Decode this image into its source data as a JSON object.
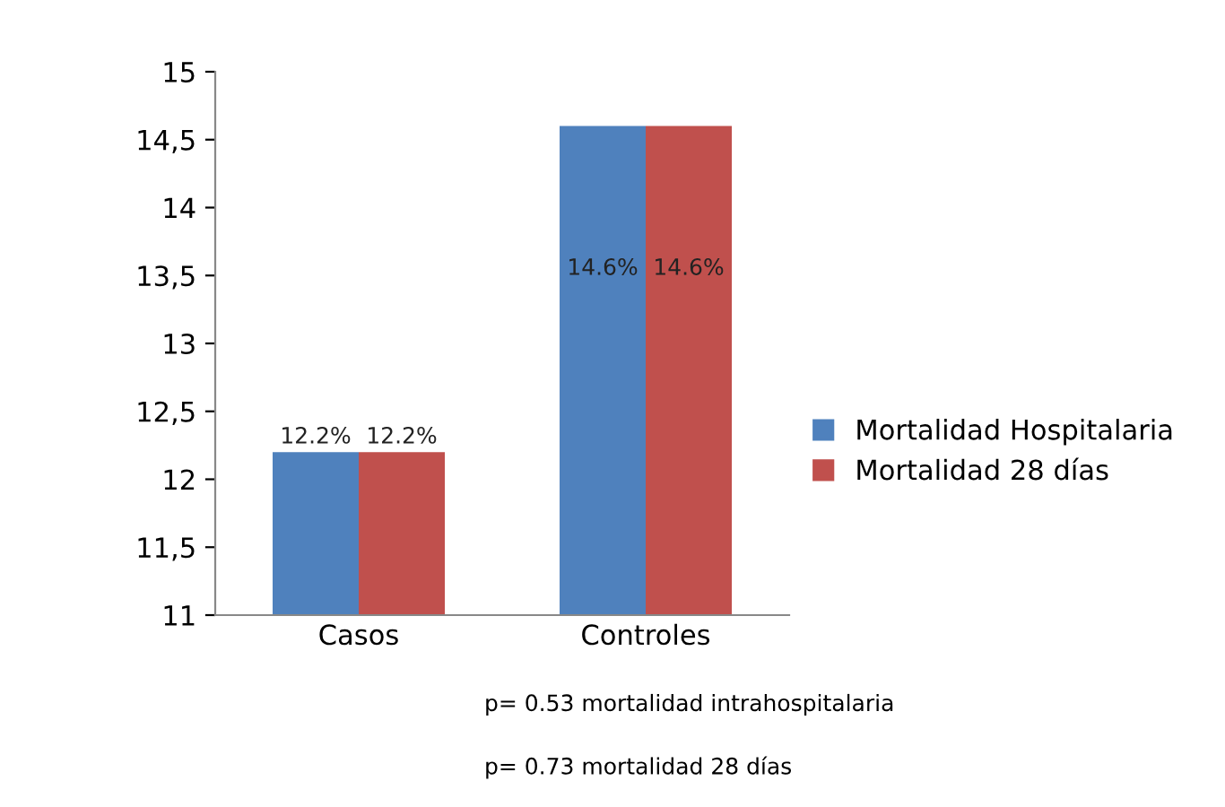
{
  "chart_data": {
    "type": "bar",
    "categories": [
      "Casos",
      "Controles"
    ],
    "series": [
      {
        "name": "Mortalidad Hospitalaria",
        "color": "#4f81bd",
        "values": [
          12.2,
          14.6
        ],
        "value_labels": [
          "12.2%",
          "14.6%"
        ]
      },
      {
        "name": "Mortalidad 28 días",
        "color": "#c0504d",
        "values": [
          12.2,
          14.6
        ],
        "value_labels": [
          "12.2%",
          "14.6%"
        ]
      }
    ],
    "ylim": [
      11,
      15
    ],
    "yticks": [
      11,
      {
        "value": 11.5,
        "label": "11,5"
      },
      12,
      {
        "value": 12.5,
        "label": "12,5"
      },
      13,
      {
        "value": 13.5,
        "label": "13,5"
      },
      14,
      {
        "value": 14.5,
        "label": "14,5"
      },
      15
    ],
    "grid": false,
    "legend": "right",
    "annotations": [
      "p= 0.53 mortalidad intrahospitalaria",
      "p= 0.73 mortalidad 28 días"
    ]
  }
}
